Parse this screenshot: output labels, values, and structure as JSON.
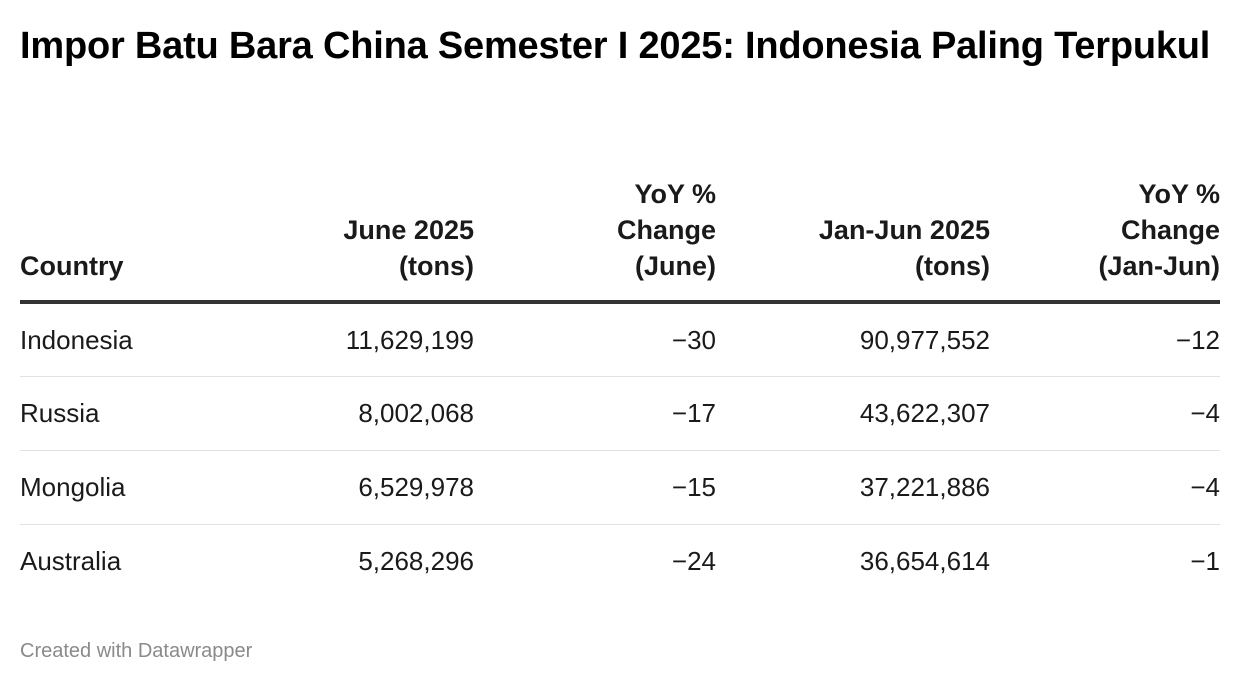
{
  "title": "Impor Batu Bara China Semester I 2025: Indonesia Paling Terpukul",
  "footer": "Created with Datawrapper",
  "chart_data": {
    "type": "table",
    "title": "Impor Batu Bara China Semester I 2025: Indonesia Paling Terpukul",
    "columns": [
      {
        "lines": [
          "Country"
        ],
        "align": "left"
      },
      {
        "lines": [
          "June 2025",
          "(tons)"
        ],
        "align": "right"
      },
      {
        "lines": [
          "YoY %",
          "Change",
          "(June)"
        ],
        "align": "right"
      },
      {
        "lines": [
          "Jan-Jun 2025",
          "(tons)"
        ],
        "align": "right"
      },
      {
        "lines": [
          "YoY %",
          "Change",
          "(Jan-Jun)"
        ],
        "align": "right"
      }
    ],
    "rows": [
      [
        "Indonesia",
        "11,629,199",
        "−30",
        "90,977,552",
        "−12"
      ],
      [
        "Russia",
        "8,002,068",
        "−17",
        "43,622,307",
        "−4"
      ],
      [
        "Mongolia",
        "6,529,978",
        "−15",
        "37,221,886",
        "−4"
      ],
      [
        "Australia",
        "5,268,296",
        "−24",
        "36,654,614",
        "−1"
      ]
    ]
  }
}
